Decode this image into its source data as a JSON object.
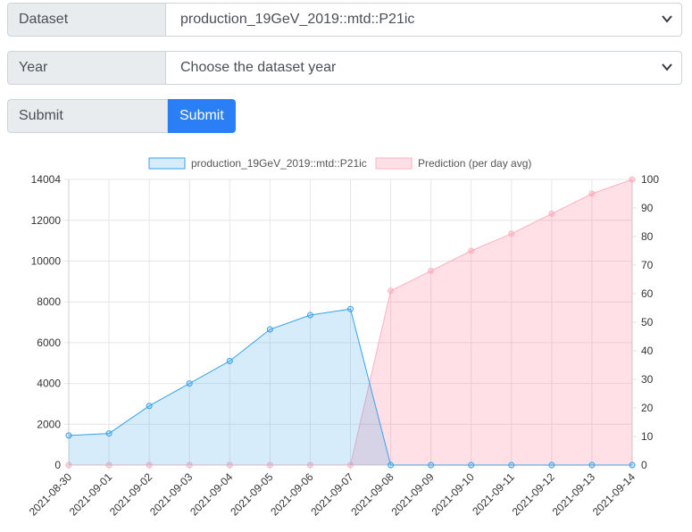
{
  "form": {
    "dataset_label": "Dataset",
    "dataset_value": "production_19GeV_2019::mtd::P21ic",
    "year_label": "Year",
    "year_value": "Choose the dataset year",
    "submit_label": "Submit",
    "submit_button": "Submit"
  },
  "colors": {
    "accent": "#2a7ef6",
    "series_blue_line": "#36a2eb",
    "series_blue_fill": "rgba(54,162,235,0.2)",
    "series_pink_line": "#ffb1c1",
    "series_pink_fill": "rgba(255,99,132,0.2)"
  },
  "chart_data": {
    "type": "area",
    "legend_position": "top",
    "categories": [
      "2021-08-30",
      "2021-09-01",
      "2021-09-02",
      "2021-09-03",
      "2021-09-04",
      "2021-09-05",
      "2021-09-06",
      "2021-09-07",
      "2021-09-08",
      "2021-09-09",
      "2021-09-10",
      "2021-09-11",
      "2021-09-12",
      "2021-09-13",
      "2021-09-14"
    ],
    "y_left": {
      "min": 0,
      "max": 14004,
      "ticks": [
        "0",
        "2000",
        "4000",
        "6000",
        "8000",
        "10000",
        "12000",
        "14004"
      ]
    },
    "y_right": {
      "min": 0,
      "max": 100,
      "ticks": [
        "0",
        "10",
        "20",
        "30",
        "40",
        "50",
        "60",
        "70",
        "80",
        "90",
        "100"
      ]
    },
    "grid": true,
    "series": [
      {
        "name": "production_19GeV_2019::mtd::P21ic",
        "axis": "left",
        "values": [
          1450,
          1550,
          2900,
          4000,
          5100,
          6650,
          7350,
          7650,
          0,
          0,
          0,
          0,
          0,
          0,
          0
        ]
      },
      {
        "name": "Prediction (per day avg)",
        "axis": "right",
        "values": [
          0,
          0,
          0,
          0,
          0,
          0,
          0,
          0,
          61,
          68,
          75,
          81,
          88,
          95,
          100
        ]
      }
    ]
  }
}
